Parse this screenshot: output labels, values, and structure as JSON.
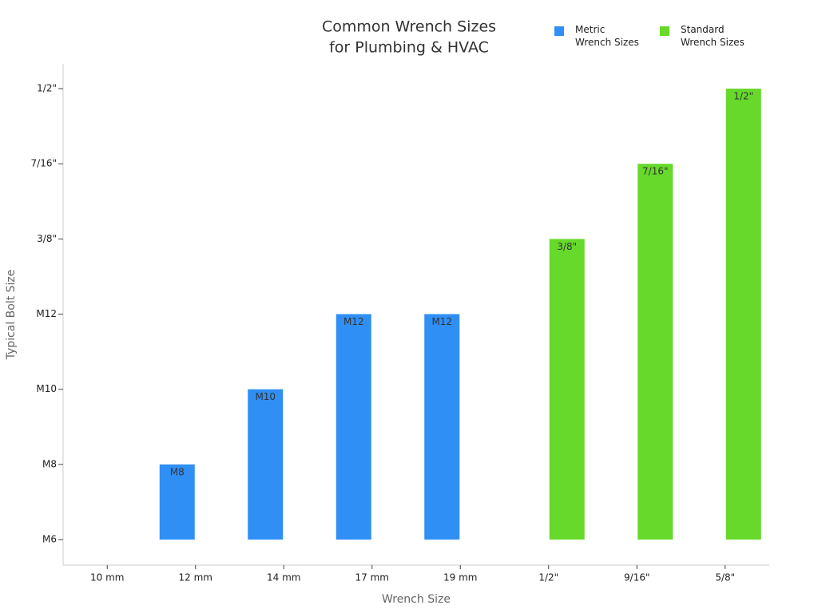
{
  "chart_data": {
    "type": "bar",
    "title": [
      "Common Wrench Sizes",
      "for Plumbing & HVAC"
    ],
    "x_label": "Wrench Size",
    "y_label": "Typical Bolt Size",
    "categories": [
      "10 mm",
      "12 mm",
      "14 mm",
      "17 mm",
      "19 mm",
      "1/2\"",
      "9/16\"",
      "5/8\""
    ],
    "series": [
      {
        "name": "Metric Wrench Sizes",
        "color": "#2f8ff5",
        "values": [
          null,
          1,
          2,
          3,
          3,
          null,
          null,
          null
        ],
        "value_labels": [
          null,
          "M8",
          "M10",
          "M12",
          "M12",
          null,
          null,
          null
        ]
      },
      {
        "name": "Standard Wrench Sizes",
        "color": "#66d92a",
        "values": [
          null,
          null,
          null,
          null,
          null,
          4,
          5,
          6
        ],
        "value_labels": [
          null,
          null,
          null,
          null,
          null,
          "3/8\"",
          "7/16\"",
          "1/2\""
        ]
      }
    ],
    "ylim": [
      -0.34,
      6.33
    ],
    "yticks": [
      {
        "value": 0,
        "label": "M6"
      },
      {
        "value": 1,
        "label": "M8"
      },
      {
        "value": 2,
        "label": "M10"
      },
      {
        "value": 3,
        "label": "M12"
      },
      {
        "value": 4,
        "label": "3/8\""
      },
      {
        "value": 5,
        "label": "7/16\""
      },
      {
        "value": 6,
        "label": "1/2\""
      }
    ],
    "legend_position": "top-right"
  }
}
